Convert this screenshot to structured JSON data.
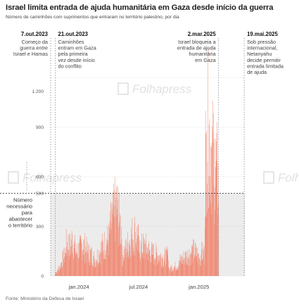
{
  "header": {
    "title": "Israel limita entrada de ajuda humanitária em Gaza desde início da guerra",
    "subtitle": "Número de caminhões com suprimentos que entraram no território palestino, por dia"
  },
  "source": "Fonte: Ministério da Defesa de Israel",
  "watermark": "Folhapress",
  "colors": {
    "bars": "#f08872",
    "ref_band": "#ececec",
    "ref_line": "#222222",
    "annotation_line": "#666666"
  },
  "chart_data": {
    "type": "bar",
    "title": "Israel limita entrada de ajuda humanitária em Gaza desde início da guerra",
    "subtitle": "Número de caminhões com suprimentos que entraram no território palestino, por dia",
    "x_range": [
      "2023-10-07",
      "2025-05-21"
    ],
    "ylim": [
      0,
      1200
    ],
    "yticks": [
      0,
      300,
      500,
      600,
      900
    ],
    "ytick_labels": [
      "0",
      "300",
      "",
      "600",
      "900"
    ],
    "y_top_label": "1.200",
    "xticks": [
      {
        "date": "2024-01-01",
        "label": "jan.2024"
      },
      {
        "date": "2024-07-01",
        "label": "jul.2024"
      },
      {
        "date": "2025-01-01",
        "label": "jan.2025"
      }
    ],
    "reference_line": {
      "value": 500,
      "label_value": "500",
      "label": [
        "Número",
        "necessário",
        "para",
        "abastecer",
        "o território"
      ]
    },
    "annotations": [
      {
        "date": "2023-10-07",
        "label_date": "7.out.2023",
        "text": [
          "Começo da",
          "guerra entre",
          "Israel e Hamas"
        ],
        "align": "end"
      },
      {
        "date": "2023-10-21",
        "label_date": "21.out.2023",
        "text": [
          "Caminhões",
          "entram em Gaza",
          "pela primeira",
          "vez desde início",
          "do conflito"
        ],
        "align": "start"
      },
      {
        "date": "2025-03-02",
        "label_date": "2.mar.2025",
        "text": [
          "Israel bloqueia a",
          "entrada de ajuda",
          "humanitária",
          "em Gaza"
        ],
        "align": "end"
      },
      {
        "date": "2025-05-19",
        "label_date": "19.mai.2025",
        "text": [
          "Sob pressão",
          "internacional,",
          "Netanyahu",
          "decide permitir",
          "entrada limitada",
          "de ajuda"
        ],
        "align": "start"
      }
    ],
    "series": [
      {
        "period_values": [
          {
            "from": "2023-10-21",
            "to": "2023-11-20",
            "values": [
              20,
              30,
              45,
              60,
              90,
              110,
              140
            ]
          },
          {
            "from": "2023-11-21",
            "to": "2023-12-31",
            "values": [
              180,
              200,
              170,
              220,
              180,
              140,
              160
            ]
          },
          {
            "from": "2024-01-01",
            "to": "2024-02-15",
            "values": [
              150,
              190,
              170,
              140,
              130,
              110
            ]
          },
          {
            "from": "2024-02-16",
            "to": "2024-04-01",
            "values": [
              90,
              120,
              150,
              180,
              200,
              220
            ]
          },
          {
            "from": "2024-04-02",
            "to": "2024-05-10",
            "values": [
              250,
              320,
              380,
              420,
              330,
              280
            ]
          },
          {
            "from": "2024-05-11",
            "to": "2024-06-30",
            "values": [
              120,
              150,
              200,
              240,
              260,
              210
            ]
          },
          {
            "from": "2024-07-01",
            "to": "2024-09-30",
            "values": [
              160,
              180,
              140,
              130,
              110,
              120
            ]
          },
          {
            "from": "2024-10-01",
            "to": "2024-11-01",
            "values": [
              40,
              50,
              60,
              70
            ]
          },
          {
            "from": "2024-11-02",
            "to": "2024-12-31",
            "values": [
              90,
              110,
              130,
              150,
              120
            ]
          },
          {
            "from": "2025-01-01",
            "to": "2025-01-18",
            "values": [
              110,
              140,
              130
            ]
          },
          {
            "from": "2025-01-19",
            "to": "2025-03-01",
            "values": [
              600,
              900,
              820,
              700,
              650,
              560
            ]
          }
        ],
        "name": ""
      }
    ]
  }
}
